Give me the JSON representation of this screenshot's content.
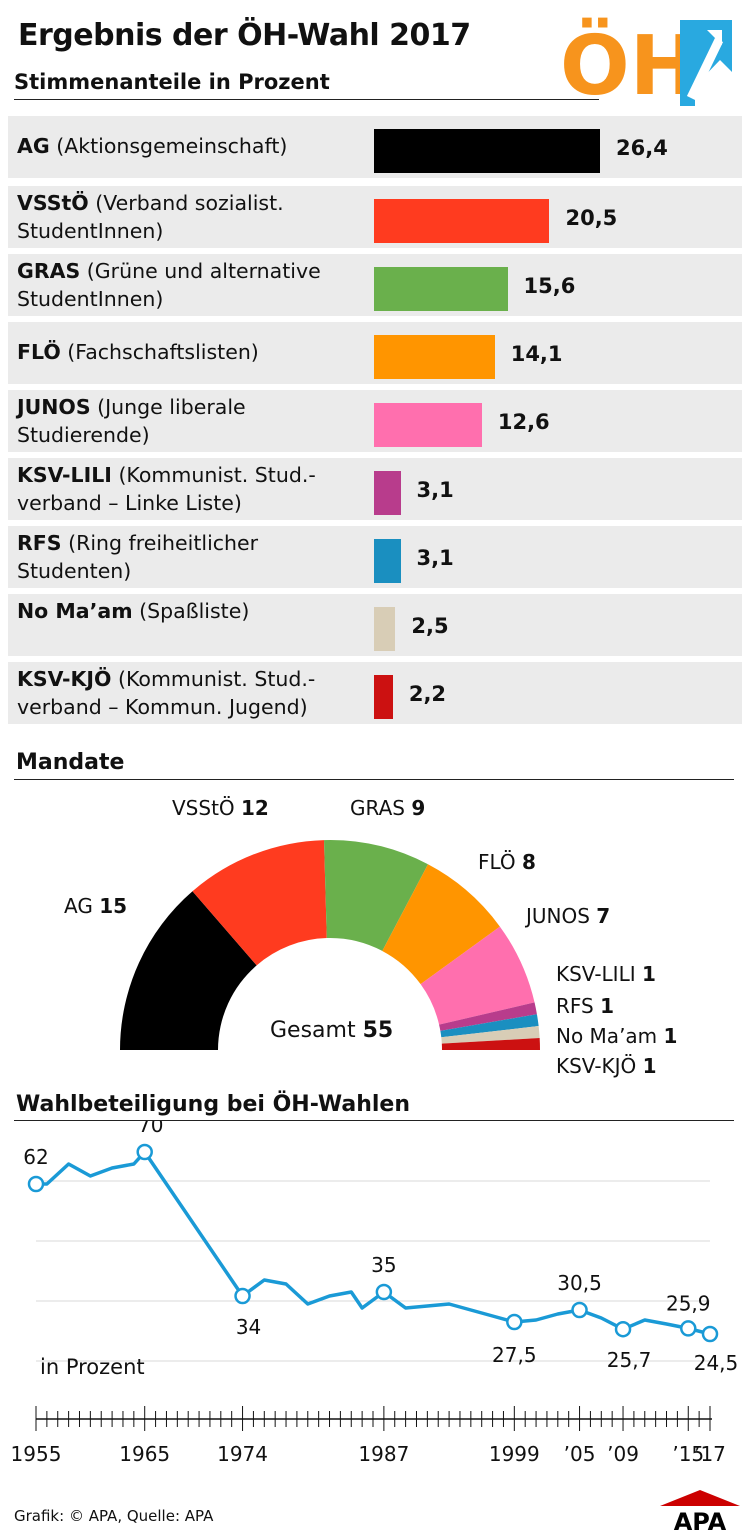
{
  "header": {
    "title": "Ergebnis der ÖH-Wahl 2017",
    "subtitle": "Stimmenanteile in Prozent",
    "logo_text": "ÖH"
  },
  "votes_section": {
    "rows": [
      {
        "abbr": "AG",
        "name": " (Aktionsgemeinschaft)",
        "value": "26,4",
        "color": "#000000"
      },
      {
        "abbr": "VSStÖ",
        "name": " (Verband sozialist. StudentInnen)",
        "value": "20,5",
        "color": "#ff3b1f"
      },
      {
        "abbr": "GRAS",
        "name": " (Grüne und alternative StudentInnen)",
        "value": "15,6",
        "color": "#6ab04c"
      },
      {
        "abbr": "FLÖ",
        "name": " (Fachschaftslisten)",
        "value": "14,1",
        "color": "#ff9500"
      },
      {
        "abbr": "JUNOS",
        "name": " (Junge liberale Studierende)",
        "value": "12,6",
        "color": "#ff6fae"
      },
      {
        "abbr": "KSV-LILI",
        "name": " (Kommunist. Stud.-verband – Linke Liste)",
        "value": "3,1",
        "color": "#b83c8c"
      },
      {
        "abbr": "RFS",
        "name": " (Ring freiheitlicher Studenten)",
        "value": "3,1",
        "color": "#1a8fc0"
      },
      {
        "abbr": "No Ma’am",
        "name": " (Spaßliste)",
        "value": "2,5",
        "color": "#d8cdb6"
      },
      {
        "abbr": "KSV-KJÖ",
        "name": " (Kommunist. Stud.-verband – Kommun. Jugend)",
        "value": "2,2",
        "color": "#cc1111"
      }
    ]
  },
  "seats_section": {
    "title": "Mandate",
    "total_label": "Gesamt",
    "total": "55",
    "labels": [
      {
        "name": "AG",
        "seats": "15"
      },
      {
        "name": "VSStÖ",
        "seats": "12"
      },
      {
        "name": "GRAS",
        "seats": "9"
      },
      {
        "name": "FLÖ",
        "seats": "8"
      },
      {
        "name": "JUNOS",
        "seats": "7"
      },
      {
        "name": "KSV-LILI",
        "seats": "1"
      },
      {
        "name": "RFS",
        "seats": "1"
      },
      {
        "name": "No Ma’am",
        "seats": "1"
      },
      {
        "name": "KSV-KJÖ",
        "seats": "1"
      }
    ]
  },
  "turnout_section": {
    "title": "Wahlbeteiligung bei ÖH-Wahlen",
    "unit_label": "in Prozent",
    "x_tick_labels": [
      "1955",
      "1965",
      "1974",
      "1987",
      "1999",
      "’05",
      "’09",
      "’15",
      "’17"
    ],
    "annotations": [
      "62",
      "70",
      "34",
      "35",
      "27,5",
      "30,5",
      "25,7",
      "25,9",
      "24,5"
    ]
  },
  "footer": {
    "credit": "Grafik: © APA, Quelle: APA",
    "logo": "APA"
  },
  "chart_data": [
    {
      "type": "bar",
      "title": "Ergebnis der ÖH-Wahl 2017",
      "subtitle": "Stimmenanteile in Prozent",
      "categories": [
        "AG",
        "VSStÖ",
        "GRAS",
        "FLÖ",
        "JUNOS",
        "KSV-LILI",
        "RFS",
        "No Ma’am",
        "KSV-KJÖ"
      ],
      "values": [
        26.4,
        20.5,
        15.6,
        14.1,
        12.6,
        3.1,
        3.1,
        2.5,
        2.2
      ],
      "colors": [
        "#000000",
        "#ff3b1f",
        "#6ab04c",
        "#ff9500",
        "#ff6fae",
        "#b83c8c",
        "#1a8fc0",
        "#d8cdb6",
        "#cc1111"
      ],
      "orientation": "horizontal"
    },
    {
      "type": "pie",
      "title": "Mandate",
      "categories": [
        "AG",
        "VSStÖ",
        "GRAS",
        "FLÖ",
        "JUNOS",
        "KSV-LILI",
        "RFS",
        "No Ma’am",
        "KSV-KJÖ"
      ],
      "values": [
        15,
        12,
        9,
        8,
        7,
        1,
        1,
        1,
        1
      ],
      "colors": [
        "#000000",
        "#ff3b1f",
        "#6ab04c",
        "#ff9500",
        "#ff6fae",
        "#b83c8c",
        "#1a8fc0",
        "#d8cdb6",
        "#cc1111"
      ],
      "total": 55,
      "style": "semicircle-donut"
    },
    {
      "type": "line",
      "title": "Wahlbeteiligung bei ÖH-Wahlen",
      "ylabel": "in Prozent",
      "x": [
        1955,
        1956,
        1958,
        1960,
        1962,
        1964,
        1965,
        1967,
        1974,
        1976,
        1978,
        1980,
        1982,
        1984,
        1985,
        1987,
        1989,
        1991,
        1993,
        1995,
        1997,
        1999,
        2001,
        2003,
        2005,
        2007,
        2009,
        2011,
        2013,
        2015,
        2017
      ],
      "values": [
        62,
        62,
        67,
        64,
        66,
        67,
        70,
        62,
        34,
        38,
        37,
        32,
        34,
        35,
        31,
        35,
        31,
        31.5,
        32,
        30.5,
        29,
        27.5,
        28,
        29.5,
        30.5,
        28.5,
        25.7,
        28,
        27,
        25.9,
        24.5
      ],
      "highlighted": [
        {
          "x": 1955,
          "y": 62
        },
        {
          "x": 1965,
          "y": 70
        },
        {
          "x": 1974,
          "y": 34
        },
        {
          "x": 1987,
          "y": 35
        },
        {
          "x": 1999,
          "y": 27.5
        },
        {
          "x": 2005,
          "y": 30.5
        },
        {
          "x": 2009,
          "y": 25.7
        },
        {
          "x": 2015,
          "y": 25.9
        },
        {
          "x": 2017,
          "y": 24.5
        }
      ],
      "xlim": [
        1955,
        2017
      ],
      "ylim": [
        0,
        75
      ],
      "grid": true,
      "color": "#1a9ad6"
    }
  ]
}
